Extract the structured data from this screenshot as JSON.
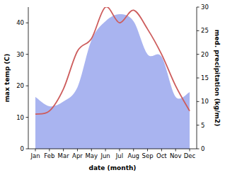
{
  "chart_data": {
    "type": "line",
    "x_label": "date (month)",
    "y_label": "max temp (C)",
    "y2_label": "med. precipitation (kg/m2)",
    "categories": [
      "Jan",
      "Feb",
      "Mar",
      "Apr",
      "May",
      "Jun",
      "Jul",
      "Aug",
      "Sep",
      "Oct",
      "Nov",
      "Dec"
    ],
    "ylim": [
      0,
      45
    ],
    "yticks": [
      0,
      10,
      20,
      30,
      40
    ],
    "y2lim": [
      0,
      30
    ],
    "y2ticks": [
      0,
      5,
      10,
      15,
      20,
      25,
      30
    ],
    "series": [
      {
        "type": "area",
        "axis": "y2",
        "color": "#a9b4f0",
        "values": [
          11,
          9,
          10,
          13,
          23,
          27,
          28.5,
          27,
          20,
          19.5,
          11,
          12
        ]
      },
      {
        "type": "line",
        "color": "#cd5c5c",
        "values": [
          11,
          12,
          19,
          31,
          35,
          45,
          40,
          44,
          38,
          30,
          20,
          12
        ]
      }
    ]
  }
}
